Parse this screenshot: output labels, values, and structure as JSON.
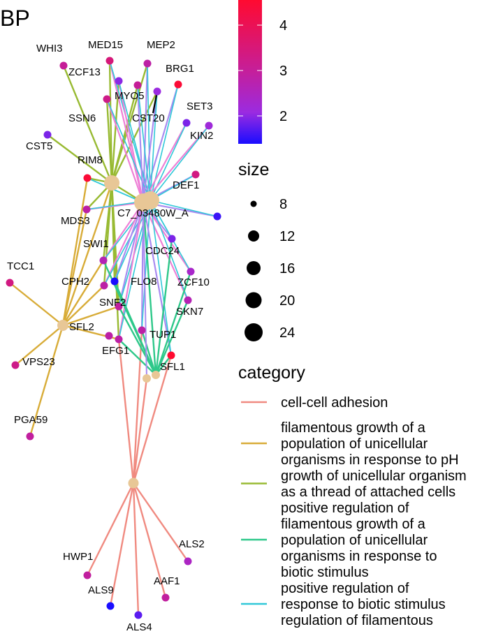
{
  "title": "BP",
  "colorbar": {
    "ticks": [
      "4",
      "3",
      "2"
    ],
    "low_color": "#1a0dff",
    "mid_color": "#9b2be0",
    "high_color": "#ff0a30"
  },
  "size_legend": {
    "title": "size",
    "values": [
      "8",
      "12",
      "16",
      "20",
      "24"
    ]
  },
  "category_legend": {
    "title": "category",
    "items": [
      {
        "label_lines": [
          "cell-cell adhesion"
        ],
        "color": "#f08a80"
      },
      {
        "label_lines": [
          "filamentous growth of a",
          "population of unicellular",
          "organisms in response to pH"
        ],
        "color": "#d8ac38"
      },
      {
        "label_lines": [
          "growth of unicellular organism",
          "as a thread of attached cells"
        ],
        "color": "#98ba32"
      },
      {
        "label_lines": [
          "positive regulation of",
          "filamentous growth of a",
          "population of unicellular",
          "organisms in response to",
          "biotic stimulus"
        ],
        "color": "#2ec88a"
      },
      {
        "label_lines": [
          "positive regulation of",
          "response to biotic stimulus",
          "regulation of filamentous"
        ],
        "color": "#30c8d8"
      }
    ]
  },
  "genes": [
    {
      "name": "WHI3",
      "level": 3.2
    },
    {
      "name": "MED15",
      "level": 3.6
    },
    {
      "name": "MEP2",
      "level": 3.0
    },
    {
      "name": "ZCF13",
      "level": 2.1
    },
    {
      "name": "BRG1",
      "level": 4.5
    },
    {
      "name": "MYO5",
      "level": 3.4
    },
    {
      "name": "CST20",
      "level": 2.2
    },
    {
      "name": "SET3",
      "level": 2.0
    },
    {
      "name": "SSN6",
      "level": 3.2
    },
    {
      "name": "KIN2",
      "level": 2.3
    },
    {
      "name": "CST5",
      "level": 2.0
    },
    {
      "name": "RIM8",
      "level": 4.5
    },
    {
      "name": "DEF1",
      "level": 3.5
    },
    {
      "name": "MDS3",
      "level": 3.0
    },
    {
      "name": "C7_03480W_A",
      "level": 1.6
    },
    {
      "name": "SWI1",
      "level": 2.8
    },
    {
      "name": "CDC24",
      "level": 2.0
    },
    {
      "name": "TCC1",
      "level": 3.5
    },
    {
      "name": "CPH2",
      "level": 3.0
    },
    {
      "name": "FLO8",
      "level": 1.1
    },
    {
      "name": "ZCF10",
      "level": 2.5
    },
    {
      "name": "SNF2",
      "level": 3.1
    },
    {
      "name": "SKN7",
      "level": 2.8
    },
    {
      "name": "SFL2",
      "level": 3.0
    },
    {
      "name": "TUP1",
      "level": 3.0
    },
    {
      "name": "EFG1",
      "level": 3.0
    },
    {
      "name": "VPS23",
      "level": 3.4
    },
    {
      "name": "SFL1",
      "level": 4.6
    },
    {
      "name": "PGA59",
      "level": 3.1
    },
    {
      "name": "ALS2",
      "level": 2.6
    },
    {
      "name": "HWP1",
      "level": 3.1
    },
    {
      "name": "AAF1",
      "level": 3.1
    },
    {
      "name": "ALS9",
      "level": 1.4
    },
    {
      "name": "ALS4",
      "level": 1.8
    }
  ]
}
